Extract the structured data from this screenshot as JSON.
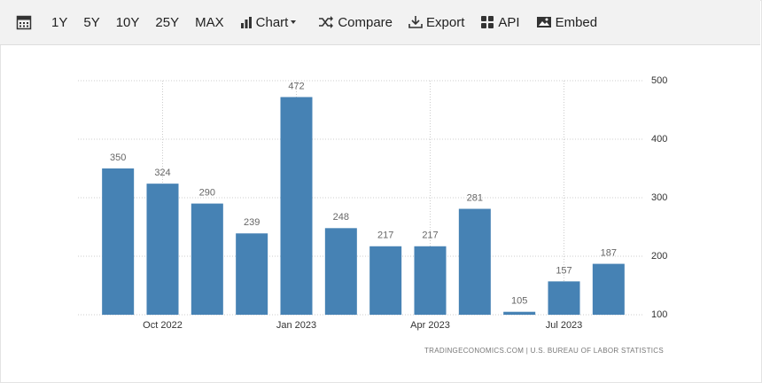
{
  "toolbar": {
    "items": [
      "1Y",
      "5Y",
      "10Y",
      "25Y",
      "MAX",
      "Chart",
      "Compare",
      "Export",
      "API",
      "Embed"
    ]
  },
  "chart_data": {
    "type": "bar",
    "categories": [
      null,
      "Oct 2022",
      null,
      null,
      "Jan 2023",
      null,
      null,
      "Apr 2023",
      null,
      null,
      "Jul 2023",
      null
    ],
    "values": [
      350,
      324,
      290,
      239,
      472,
      248,
      217,
      217,
      281,
      105,
      157,
      187
    ],
    "color": "#4682b4",
    "ylim": [
      100,
      500
    ],
    "yticks": [
      100,
      200,
      300,
      400,
      500
    ],
    "grid": true,
    "source": "TRADINGECONOMICS.COM | U.S. BUREAU OF LABOR STATISTICS"
  }
}
